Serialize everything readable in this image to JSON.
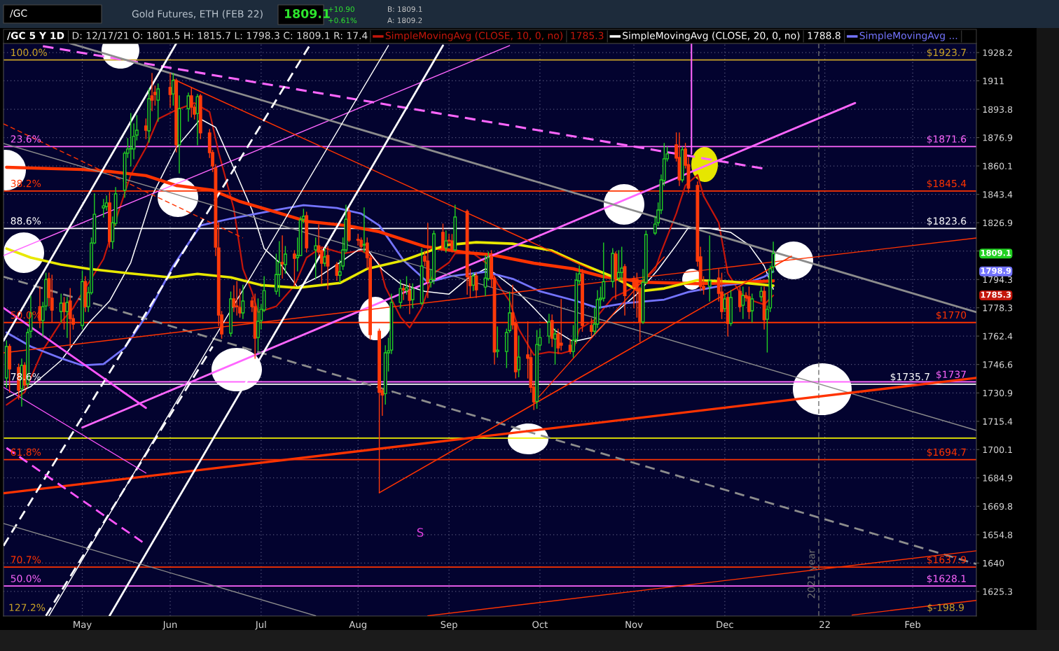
{
  "chart_data": {
    "type": "candlestick",
    "title": "/GC 5 Y 1D",
    "subtitle": "D: 12/17/21 O: 1801.5 H: 1815.7 L: 1798.3 C: 1809.1 R: 17.4",
    "x": [
      "2021-04-08",
      "2021-04-09",
      "2021-04-12",
      "2021-04-13",
      "2021-04-14",
      "2021-04-15",
      "2021-04-16",
      "2021-04-19",
      "2021-04-20",
      "2021-04-21",
      "2021-04-22",
      "2021-04-23",
      "2021-04-26",
      "2021-04-27",
      "2021-04-28",
      "2021-04-29",
      "2021-04-30",
      "2021-05-03",
      "2021-05-04",
      "2021-05-05",
      "2021-05-06",
      "2021-05-07",
      "2021-05-10",
      "2021-05-11",
      "2021-05-12",
      "2021-05-13",
      "2021-05-14",
      "2021-05-17",
      "2021-05-18",
      "2021-05-19",
      "2021-05-20",
      "2021-05-21",
      "2021-05-24",
      "2021-05-25",
      "2021-05-26",
      "2021-05-27",
      "2021-05-28",
      "2021-06-01",
      "2021-06-02",
      "2021-06-03",
      "2021-06-04",
      "2021-06-07",
      "2021-06-08",
      "2021-06-09",
      "2021-06-10",
      "2021-06-11",
      "2021-06-14",
      "2021-06-15",
      "2021-06-16",
      "2021-06-17",
      "2021-06-18",
      "2021-06-21",
      "2021-06-22",
      "2021-06-23",
      "2021-06-24",
      "2021-06-25",
      "2021-06-28",
      "2021-06-29",
      "2021-06-30",
      "2021-07-01",
      "2021-07-02",
      "2021-07-06",
      "2021-07-07",
      "2021-07-08",
      "2021-07-09",
      "2021-07-12",
      "2021-07-13",
      "2021-07-14",
      "2021-07-15",
      "2021-07-16",
      "2021-07-19",
      "2021-07-20",
      "2021-07-21",
      "2021-07-22",
      "2021-07-23",
      "2021-07-26",
      "2021-07-27",
      "2021-07-28",
      "2021-07-29",
      "2021-07-30",
      "2021-08-02",
      "2021-08-03",
      "2021-08-04",
      "2021-08-05",
      "2021-08-06",
      "2021-08-09",
      "2021-08-10",
      "2021-08-11",
      "2021-08-12",
      "2021-08-13",
      "2021-08-16",
      "2021-08-17",
      "2021-08-18",
      "2021-08-19",
      "2021-08-20",
      "2021-08-23",
      "2021-08-24",
      "2021-08-25",
      "2021-08-26",
      "2021-08-27",
      "2021-08-30",
      "2021-08-31",
      "2021-09-01",
      "2021-09-02",
      "2021-09-03",
      "2021-09-07",
      "2021-09-08",
      "2021-09-09",
      "2021-09-10",
      "2021-09-13",
      "2021-09-14",
      "2021-09-15",
      "2021-09-16",
      "2021-09-17",
      "2021-09-20",
      "2021-09-21",
      "2021-09-22",
      "2021-09-23",
      "2021-09-24",
      "2021-09-27",
      "2021-09-28",
      "2021-09-29",
      "2021-09-30",
      "2021-10-01",
      "2021-10-04",
      "2021-10-05",
      "2021-10-06",
      "2021-10-07",
      "2021-10-08",
      "2021-10-11",
      "2021-10-12",
      "2021-10-13",
      "2021-10-14",
      "2021-10-15",
      "2021-10-18",
      "2021-10-19",
      "2021-10-20",
      "2021-10-21",
      "2021-10-22",
      "2021-10-25",
      "2021-10-26",
      "2021-10-27",
      "2021-10-28",
      "2021-10-29",
      "2021-11-01",
      "2021-11-02",
      "2021-11-03",
      "2021-11-04",
      "2021-11-05",
      "2021-11-08",
      "2021-11-09",
      "2021-11-10",
      "2021-11-11",
      "2021-11-12",
      "2021-11-15",
      "2021-11-16",
      "2021-11-17",
      "2021-11-18",
      "2021-11-19",
      "2021-11-22",
      "2021-11-23",
      "2021-11-24",
      "2021-11-26",
      "2021-11-29",
      "2021-11-30",
      "2021-12-01",
      "2021-12-02",
      "2021-12-03",
      "2021-12-06",
      "2021-12-07",
      "2021-12-08",
      "2021-12-09",
      "2021-12-10",
      "2021-12-13",
      "2021-12-14",
      "2021-12-15",
      "2021-12-16",
      "2021-12-17"
    ],
    "ohlc": [
      [
        1739.1,
        1759.7,
        1734.0,
        1756.6
      ],
      [
        1756.6,
        1757.7,
        1731.3,
        1744.1
      ],
      [
        1744.9,
        1746.8,
        1727.5,
        1732.4
      ],
      [
        1733.2,
        1749.6,
        1723.7,
        1746.1
      ],
      [
        1746.1,
        1747.6,
        1733.2,
        1735.2
      ],
      [
        1736.0,
        1766.3,
        1734.4,
        1764.4
      ],
      [
        1765.1,
        1784.8,
        1761.6,
        1775.4
      ],
      [
        1778.9,
        1790.0,
        1767.1,
        1771.1
      ],
      [
        1771.1,
        1781.3,
        1762.4,
        1778.9
      ],
      [
        1779.3,
        1797.9,
        1777.0,
        1794.3
      ],
      [
        1794.7,
        1797.9,
        1779.3,
        1784.1
      ],
      [
        1783.7,
        1796.7,
        1770.3,
        1777.0
      ],
      [
        1776.2,
        1786.0,
        1770.3,
        1780.9
      ],
      [
        1780.9,
        1784.1,
        1766.3,
        1776.2
      ],
      [
        1776.2,
        1784.1,
        1761.6,
        1781.3
      ],
      [
        1782.1,
        1789.2,
        1755.4,
        1772.2
      ],
      [
        1772.2,
        1774.2,
        1766.3,
        1769.1
      ],
      [
        1768.3,
        1799.2,
        1766.3,
        1793.1
      ],
      [
        1793.1,
        1795.9,
        1776.2,
        1778.9
      ],
      [
        1778.9,
        1790.0,
        1776.2,
        1786.8
      ],
      [
        1786.8,
        1818.1,
        1786.0,
        1815.2
      ],
      [
        1815.2,
        1843.7,
        1814.8,
        1831.8
      ],
      [
        1835.5,
        1840.4,
        1830.2,
        1836.7
      ],
      [
        1836.3,
        1842.5,
        1834.3,
        1838.4
      ],
      [
        1838.4,
        1844.5,
        1812.8,
        1816.0
      ],
      [
        1816.0,
        1830.2,
        1812.0,
        1826.9
      ],
      [
        1826.5,
        1847.4,
        1825.3,
        1843.7
      ],
      [
        1845.8,
        1868.4,
        1841.7,
        1867.6
      ],
      [
        1867.6,
        1876.3,
        1865.1,
        1870.1
      ],
      [
        1870.1,
        1891.3,
        1860.1,
        1870.5
      ],
      [
        1870.1,
        1885.1,
        1864.3,
        1877.6
      ],
      [
        1878.4,
        1890.1,
        1875.5,
        1881.3
      ],
      [
        1883.8,
        1888.0,
        1876.3,
        1881.3
      ],
      [
        1880.9,
        1906.1,
        1874.2,
        1900.2
      ],
      [
        1901.9,
        1915.5,
        1893.0,
        1899.3
      ],
      [
        1904.0,
        1907.8,
        1896.3,
        1902.7
      ],
      [
        1899.3,
        1909.1,
        1886.7,
        1906.1
      ],
      [
        1907.0,
        1915.5,
        1895.1,
        1902.7
      ],
      [
        1903.1,
        1915.5,
        1896.3,
        1911.2
      ],
      [
        1911.2,
        1912.1,
        1868.4,
        1872.6
      ],
      [
        1872.6,
        1901.9,
        1856.0,
        1894.2
      ],
      [
        1894.2,
        1903.6,
        1886.7,
        1901.9
      ],
      [
        1901.9,
        1907.0,
        1889.2,
        1895.1
      ],
      [
        1895.1,
        1896.3,
        1888.0,
        1890.9
      ],
      [
        1891.3,
        1902.7,
        1872.6,
        1901.4
      ],
      [
        1901.9,
        1902.7,
        1876.3,
        1879.7
      ],
      [
        1879.7,
        1881.7,
        1865.1,
        1868.0
      ],
      [
        1868.0,
        1869.3,
        1856.8,
        1860.1
      ],
      [
        1858.9,
        1860.9,
        1808.0,
        1812.8
      ],
      [
        1812.4,
        1826.9,
        1768.3,
        1774.2
      ],
      [
        1774.2,
        1776.2,
        1761.2,
        1763.6
      ],
      [
        1764.0,
        1787.2,
        1762.4,
        1783.3
      ],
      [
        1783.3,
        1790.8,
        1776.2,
        1778.9
      ],
      [
        1779.3,
        1793.1,
        1774.2,
        1778.9
      ],
      [
        1778.5,
        1788.8,
        1773.0,
        1775.4
      ],
      [
        1775.4,
        1791.1,
        1772.2,
        1782.1
      ],
      [
        1782.1,
        1784.1,
        1776.2,
        1778.9
      ],
      [
        1778.9,
        1786.0,
        1750.0,
        1761.2
      ],
      [
        1761.6,
        1783.3,
        1754.6,
        1770.7
      ],
      [
        1771.1,
        1780.1,
        1766.3,
        1777.4
      ],
      [
        1777.0,
        1795.9,
        1776.2,
        1788.0
      ],
      [
        1787.6,
        1808.8,
        1786.0,
        1797.1
      ],
      [
        1797.1,
        1816.0,
        1784.8,
        1804.0
      ],
      [
        1804.0,
        1819.3,
        1795.1,
        1803.2
      ],
      [
        1802.8,
        1813.2,
        1797.9,
        1808.8
      ],
      [
        1808.8,
        1810.8,
        1791.1,
        1806.4
      ],
      [
        1806.8,
        1818.1,
        1799.2,
        1808.0
      ],
      [
        1808.0,
        1830.2,
        1808.0,
        1828.5
      ],
      [
        1828.9,
        1834.7,
        1826.9,
        1830.6
      ],
      [
        1831.0,
        1833.0,
        1810.0,
        1812.4
      ],
      [
        1811.2,
        1818.1,
        1795.1,
        1813.6
      ],
      [
        1813.6,
        1825.7,
        1808.0,
        1810.0
      ],
      [
        1810.8,
        1812.0,
        1791.9,
        1803.6
      ],
      [
        1803.6,
        1812.0,
        1802.0,
        1807.2
      ],
      [
        1808.0,
        1813.2,
        1788.8,
        1802.0
      ],
      [
        1802.8,
        1804.0,
        1793.9,
        1796.7
      ],
      [
        1796.7,
        1805.2,
        1792.7,
        1798.7
      ],
      [
        1802.0,
        1818.1,
        1800.0,
        1811.2
      ],
      [
        1811.2,
        1837.1,
        1810.0,
        1828.9
      ],
      [
        1833.0,
        1835.1,
        1816.0,
        1816.8
      ],
      [
        1817.3,
        1820.1,
        1814.0,
        1816.8
      ],
      [
        1816.8,
        1818.1,
        1812.0,
        1813.2
      ],
      [
        1814.0,
        1835.5,
        1810.0,
        1814.4
      ],
      [
        1815.2,
        1818.1,
        1800.8,
        1806.8
      ],
      [
        1806.4,
        1808.0,
        1760.5,
        1763.2
      ],
      [
        1765.1,
        1766.3,
        1677.0,
        1731.3
      ],
      [
        1732.2,
        1733.2,
        1718.7,
        1729.8
      ],
      [
        1730.5,
        1757.0,
        1724.8,
        1753.1
      ],
      [
        1753.1,
        1761.2,
        1743.0,
        1754.2
      ],
      [
        1754.6,
        1786.0,
        1752.7,
        1781.3
      ],
      [
        1781.3,
        1793.9,
        1778.2,
        1789.2
      ],
      [
        1789.2,
        1791.1,
        1782.9,
        1788.4
      ],
      [
        1788.0,
        1795.9,
        1786.0,
        1789.6
      ],
      [
        1788.0,
        1791.9,
        1775.0,
        1782.5
      ],
      [
        1782.9,
        1791.9,
        1778.2,
        1789.2
      ],
      [
        1780.9,
        1812.0,
        1780.1,
        1802.0
      ],
      [
        1807.6,
        1810.0,
        1802.0,
        1804.8
      ],
      [
        1804.8,
        1826.5,
        1784.1,
        1793.1
      ],
      [
        1792.7,
        1800.0,
        1790.0,
        1794.3
      ],
      [
        1794.3,
        1822.1,
        1791.9,
        1820.5
      ],
      [
        1821.3,
        1826.1,
        1811.6,
        1812.4
      ],
      [
        1812.4,
        1822.1,
        1810.0,
        1816.4
      ],
      [
        1816.8,
        1820.1,
        1814.0,
        1816.4
      ],
      [
        1816.4,
        1820.1,
        1810.0,
        1812.0
      ],
      [
        1811.2,
        1837.1,
        1810.8,
        1830.2
      ],
      [
        1833.5,
        1834.3,
        1786.0,
        1795.9
      ],
      [
        1795.9,
        1800.0,
        1784.1,
        1790.8
      ],
      [
        1791.1,
        1797.9,
        1788.0,
        1796.3
      ],
      [
        1796.3,
        1797.9,
        1784.1,
        1788.4
      ],
      [
        1790.0,
        1808.0,
        1785.2,
        1795.1
      ],
      [
        1794.7,
        1810.0,
        1793.9,
        1806.8
      ],
      [
        1807.6,
        1810.8,
        1790.0,
        1794.7
      ],
      [
        1795.1,
        1795.9,
        1746.8,
        1753.5
      ],
      [
        1753.8,
        1767.5,
        1750.7,
        1754.6
      ],
      [
        1753.8,
        1766.3,
        1744.9,
        1764.4
      ],
      [
        1765.5,
        1787.2,
        1764.4,
        1775.4
      ],
      [
        1775.4,
        1791.1,
        1766.3,
        1768.7
      ],
      [
        1769.5,
        1770.3,
        1739.1,
        1742.6
      ],
      [
        1743.7,
        1762.4,
        1739.8,
        1750.7
      ],
      [
        1751.9,
        1770.3,
        1739.1,
        1750.0
      ],
      [
        1750.4,
        1754.6,
        1731.3,
        1734.0
      ],
      [
        1734.0,
        1737.1,
        1721.8,
        1726.0
      ],
      [
        1726.3,
        1765.5,
        1722.5,
        1757.7
      ],
      [
        1757.3,
        1766.3,
        1754.6,
        1761.6
      ],
      [
        1762.4,
        1774.6,
        1758.5,
        1770.3
      ],
      [
        1771.1,
        1774.2,
        1756.6,
        1761.2
      ],
      [
        1760.8,
        1766.3,
        1746.8,
        1763.6
      ],
      [
        1763.6,
        1766.3,
        1752.7,
        1755.8
      ],
      [
        1758.5,
        1782.9,
        1754.6,
        1757.3
      ],
      [
        1757.3,
        1760.5,
        1752.7,
        1753.8
      ],
      [
        1753.8,
        1768.3,
        1750.7,
        1760.1
      ],
      [
        1760.5,
        1797.9,
        1758.5,
        1793.9
      ],
      [
        1793.5,
        1802.0,
        1791.9,
        1797.5
      ],
      [
        1797.5,
        1800.0,
        1765.1,
        1768.3
      ],
      [
        1768.3,
        1772.2,
        1762.4,
        1765.1
      ],
      [
        1765.1,
        1778.2,
        1763.6,
        1769.1
      ],
      [
        1769.1,
        1788.0,
        1767.1,
        1782.9
      ],
      [
        1782.9,
        1790.0,
        1778.2,
        1783.7
      ],
      [
        1783.7,
        1815.2,
        1782.1,
        1793.1
      ],
      [
        1793.1,
        1812.0,
        1790.0,
        1809.2
      ],
      [
        1808.8,
        1810.0,
        1783.3,
        1794.7
      ],
      [
        1795.1,
        1810.8,
        1793.9,
        1798.3
      ],
      [
        1798.3,
        1812.8,
        1793.9,
        1800.8
      ],
      [
        1801.6,
        1802.8,
        1774.2,
        1785.2
      ],
      [
        1794.7,
        1795.9,
        1778.2,
        1790.0
      ],
      [
        1794.3,
        1797.9,
        1773.0,
        1788.0
      ],
      [
        1789.2,
        1790.0,
        1759.3,
        1770.3
      ],
      [
        1770.3,
        1800.0,
        1769.5,
        1792.7
      ],
      [
        1792.7,
        1822.1,
        1791.9,
        1820.1
      ],
      [
        1820.9,
        1830.2,
        1820.1,
        1826.1
      ],
      [
        1826.9,
        1838.4,
        1825.3,
        1834.3
      ],
      [
        1834.3,
        1854.8,
        1832.2,
        1851.9
      ],
      [
        1851.5,
        1873.4,
        1848.6,
        1864.3
      ],
      [
        1864.3,
        1871.3,
        1863.0,
        1867.2
      ],
      [
        1872.6,
        1879.7,
        1863.0,
        1864.7
      ],
      [
        1865.1,
        1879.7,
        1848.6,
        1851.9
      ],
      [
        1851.9,
        1871.3,
        1850.7,
        1869.7
      ],
      [
        1870.1,
        1873.4,
        1858.9,
        1860.5
      ],
      [
        1860.9,
        1865.1,
        1844.5,
        1847.0
      ],
      [
        1848.6,
        1850.7,
        1802.0,
        1804.8
      ],
      [
        1807.2,
        1812.8,
        1788.0,
        1790.4
      ],
      [
        1790.4,
        1795.9,
        1786.0,
        1788.8
      ],
      [
        1790.4,
        1819.3,
        1782.1,
        1793.5
      ],
      [
        1795.1,
        1800.0,
        1782.1,
        1786.4
      ],
      [
        1787.2,
        1797.9,
        1772.2,
        1776.2
      ],
      [
        1777.8,
        1786.0,
        1776.2,
        1783.3
      ],
      [
        1784.1,
        1786.0,
        1762.4,
        1769.5
      ],
      [
        1769.5,
        1788.0,
        1768.3,
        1784.1
      ],
      [
        1787.6,
        1790.0,
        1776.2,
        1778.9
      ],
      [
        1779.7,
        1790.0,
        1772.2,
        1785.2
      ],
      [
        1785.2,
        1786.8,
        1782.1,
        1784.1
      ],
      [
        1784.5,
        1790.0,
        1772.2,
        1776.2
      ],
      [
        1776.6,
        1786.0,
        1770.3,
        1783.3
      ],
      [
        1784.5,
        1790.0,
        1782.1,
        1787.6
      ],
      [
        1787.6,
        1790.0,
        1766.3,
        1771.5
      ],
      [
        1771.8,
        1779.3,
        1753.5,
        1777.4
      ],
      [
        1778.2,
        1801.9,
        1776.2,
        1800.4
      ],
      [
        1801.5,
        1815.7,
        1798.3,
        1809.1
      ]
    ],
    "series": [
      {
        "type": "line",
        "name": "SimpleMovingAvg (CLOSE, 10, 0, no)",
        "color": "#c4160b",
        "x": [
          "2021-04-08",
          "2021-04-14",
          "2021-04-20",
          "2021-04-26",
          "2021-04-30",
          "2021-05-01",
          "2021-05-10",
          "2021-05-15",
          "2021-05-19",
          "2021-05-24",
          "2021-05-28",
          "2021-06-03",
          "2021-06-09",
          "2021-06-14",
          "2021-06-17",
          "2021-06-22",
          "2021-06-25",
          "2021-06-28",
          "2021-06-30",
          "2021-07-06",
          "2021-07-12",
          "2021-07-16",
          "2021-07-21",
          "2021-07-28",
          "2021-08-03",
          "2021-08-06",
          "2021-08-09",
          "2021-08-11",
          "2021-08-16",
          "2021-08-19",
          "2021-08-23",
          "2021-08-27",
          "2021-09-01",
          "2021-09-03",
          "2021-09-09",
          "2021-09-14",
          "2021-09-17",
          "2021-09-21",
          "2021-09-24",
          "2021-09-29",
          "2021-10-04",
          "2021-10-08",
          "2021-10-12",
          "2021-10-14",
          "2021-10-19",
          "2021-10-25",
          "2021-10-29",
          "2021-11-03",
          "2021-11-08",
          "2021-11-10",
          "2021-11-15",
          "2021-11-18",
          "2021-11-22",
          "2021-11-24",
          "2021-11-29",
          "2021-12-02",
          "2021-12-06",
          "2021-12-09",
          "2021-12-14",
          "2021-12-17"
        ],
        "values": [
          1724.4,
          1731.3,
          1754.6,
          1770.3,
          1778.2,
          1781.2,
          1806.0,
          1833.5,
          1854.8,
          1870.9,
          1888.0,
          1893.4,
          1897.6,
          1892.2,
          1868.0,
          1835.1,
          1800.4,
          1787.2,
          1775.8,
          1779.1,
          1790.8,
          1806.8,
          1812.8,
          1809.2,
          1810.8,
          1808.0,
          1803.2,
          1790.0,
          1773.0,
          1767.1,
          1778.2,
          1797.9,
          1804.0,
          1809.2,
          1809.2,
          1802.8,
          1791.9,
          1782.1,
          1766.3,
          1751.9,
          1753.5,
          1752.7,
          1754.6,
          1766.3,
          1771.5,
          1784.1,
          1787.2,
          1791.9,
          1800.0,
          1810.0,
          1832.3,
          1848.7,
          1854.8,
          1842.5,
          1826.9,
          1797.9,
          1786.8,
          1782.9,
          1780.1,
          1785.3
        ]
      },
      {
        "type": "line",
        "name": "SimpleMovingAvg (CLOSE, 20, 0, no)",
        "color": "#ffffff",
        "x": [
          "2021-04-08",
          "2021-04-16",
          "2021-04-26",
          "2021-05-05",
          "2021-05-12",
          "2021-05-19",
          "2021-05-26",
          "2021-06-03",
          "2021-06-11",
          "2021-06-16",
          "2021-06-22",
          "2021-06-28",
          "2021-07-02",
          "2021-07-07",
          "2021-07-13",
          "2021-07-20",
          "2021-07-27",
          "2021-08-02",
          "2021-08-05",
          "2021-08-10",
          "2021-08-16",
          "2021-08-24",
          "2021-09-01",
          "2021-09-07",
          "2021-09-13",
          "2021-09-16",
          "2021-09-22",
          "2021-09-29",
          "2021-10-06",
          "2021-10-12",
          "2021-10-18",
          "2021-10-25",
          "2021-11-02",
          "2021-11-09",
          "2021-11-15",
          "2021-11-19",
          "2021-11-26",
          "2021-12-03",
          "2021-12-09",
          "2021-12-14",
          "2021-12-17"
        ],
        "values": [
          1728.2,
          1734.4,
          1748.8,
          1769.5,
          1782.1,
          1804.0,
          1842.5,
          1870.9,
          1888.0,
          1883.0,
          1858.9,
          1834.3,
          1812.0,
          1804.0,
          1790.0,
          1795.9,
          1804.0,
          1811.2,
          1811.6,
          1800.0,
          1791.9,
          1787.6,
          1786.0,
          1794.7,
          1800.4,
          1797.9,
          1790.0,
          1778.2,
          1765.5,
          1759.3,
          1761.6,
          1774.2,
          1786.0,
          1800.0,
          1814.0,
          1824.1,
          1823.7,
          1821.3,
          1814.0,
          1802.0,
          1788.8
        ]
      },
      {
        "type": "line",
        "name": "SimpleMovingAvg ...",
        "color": "#7474ff",
        "x": [
          "2021-04-08",
          "2021-04-16",
          "2021-04-26",
          "2021-05-03",
          "2021-05-10",
          "2021-05-17",
          "2021-05-25",
          "2021-06-02",
          "2021-06-11",
          "2021-06-21",
          "2021-07-06",
          "2021-07-15",
          "2021-07-26",
          "2021-08-03",
          "2021-08-09",
          "2021-08-17",
          "2021-08-25",
          "2021-09-02",
          "2021-09-13",
          "2021-09-22",
          "2021-10-01",
          "2021-10-13",
          "2021-10-20",
          "2021-10-29",
          "2021-11-11",
          "2021-11-19",
          "2021-11-30",
          "2021-12-09",
          "2021-12-14",
          "2021-12-17"
        ],
        "values": [
          1764.4,
          1756.6,
          1750.0,
          1746.1,
          1746.8,
          1755.8,
          1776.2,
          1802.0,
          1825.3,
          1829.3,
          1834.3,
          1837.1,
          1835.5,
          1832.2,
          1825.3,
          1805.2,
          1792.7,
          1796.3,
          1798.7,
          1794.7,
          1787.6,
          1782.1,
          1778.2,
          1780.9,
          1782.9,
          1787.2,
          1790.8,
          1792.7,
          1795.9,
          1798.9
        ]
      },
      {
        "type": "line",
        "color": "#ff3300",
        "x": [
          "2021-04-08",
          "2021-05-03",
          "2021-05-12",
          "2021-05-24",
          "2021-06-03",
          "2021-06-15",
          "2021-06-24",
          "2021-07-06",
          "2021-07-16",
          "2021-07-29",
          "2021-08-09",
          "2021-08-24",
          "2021-09-07",
          "2021-09-15",
          "2021-09-29",
          "2021-10-12",
          "2021-10-22",
          "2021-11-05",
          "2021-11-22",
          "2021-12-07",
          "2021-12-17"
        ],
        "values": [
          1859.3,
          1858.0,
          1856.8,
          1854.4,
          1848.6,
          1845.8,
          1839.2,
          1833.0,
          1827.7,
          1825.3,
          1821.7,
          1813.2,
          1809.6,
          1808.4,
          1803.6,
          1800.4,
          1795.9,
          1792.7,
          1791.9,
          1792.7,
          1793.5
        ]
      },
      {
        "type": "line",
        "color": "#e8e800",
        "x": [
          "2021-04-08",
          "2021-04-16",
          "2021-04-26",
          "2021-05-05",
          "2021-05-18",
          "2021-06-01",
          "2021-06-10",
          "2021-06-21",
          "2021-07-01",
          "2021-07-13",
          "2021-07-27",
          "2021-08-05",
          "2021-08-17",
          "2021-08-31",
          "2021-09-10",
          "2021-09-22",
          "2021-10-05",
          "2021-10-14",
          "2021-10-25",
          "2021-11-03",
          "2021-11-11",
          "2021-11-22",
          "2021-12-03",
          "2021-12-17"
        ],
        "values": [
          1812.0,
          1806.8,
          1802.8,
          1800.4,
          1797.9,
          1795.5,
          1797.5,
          1795.5,
          1791.1,
          1789.6,
          1792.3,
          1800.4,
          1805.2,
          1814.0,
          1815.6,
          1814.8,
          1810.8,
          1803.6,
          1795.9,
          1787.6,
          1789.2,
          1793.9,
          1793.1,
          1790.8
        ]
      },
      {
        "type": "line",
        "color": "#ff66ff",
        "line_style": "dashed",
        "x": [
          "2021-04-20",
          "2021-12-14"
        ],
        "values": [
          1932.1,
          1858.5
        ]
      },
      {
        "type": "line",
        "color": "#ff66ff",
        "x": [
          "2021-05-03",
          "2022-01-13"
        ],
        "values": [
          1712.0,
          1897.6
        ]
      },
      {
        "type": "line",
        "color": "#ff66ff",
        "x": [
          "2021-04-07",
          "2021-09-21"
        ],
        "values": [
          1808.0,
          1932.5
        ]
      },
      {
        "type": "line",
        "color": "#8c8c8c",
        "x": [
          "2021-04-29",
          "2022-02-22"
        ],
        "values": [
          1933.8,
          1775.8
        ]
      },
      {
        "type": "line",
        "color": "#8c8c8c",
        "x": [
          "2021-04-07",
          "2022-02-22"
        ],
        "values": [
          1873.4,
          1710.5
        ]
      },
      {
        "type": "line",
        "color": "#8c8c8c",
        "line_style": "dashed",
        "x": [
          "2021-04-07",
          "2022-02-22"
        ],
        "values": [
          1795.9,
          1639.5
        ]
      },
      {
        "type": "line",
        "color": "#ff3300",
        "x": [
          "2021-04-07",
          "2022-02-22"
        ],
        "values": [
          1676.7,
          1739.2
        ]
      },
      {
        "type": "line",
        "color": "#ff3300",
        "x": [
          "2021-04-07",
          "2022-02-22"
        ],
        "values": [
          1753.1,
          1818.1
        ]
      },
      {
        "type": "line",
        "color": "#ff3300",
        "x": [
          "2021-08-25",
          "2022-02-22"
        ],
        "values": [
          1612.8,
          1646.4
        ]
      },
      {
        "type": "line",
        "color": "#ff3300",
        "x": [
          "2022-01-12",
          "2022-02-22"
        ],
        "values": [
          1613.2,
          1620.7
        ]
      },
      {
        "type": "line",
        "color": "#ff3300",
        "x": [
          "2021-08-09",
          "2021-12-23"
        ],
        "values": [
          1677.0,
          1807.6
        ]
      },
      {
        "type": "line",
        "color": "#ff3300",
        "x": [
          "2021-09-29",
          "2021-11-11"
        ],
        "values": [
          1725.7,
          1807.2
        ]
      },
      {
        "type": "line",
        "color": "#ff3300",
        "x": [
          "2021-06-02",
          "2021-10-18"
        ],
        "values": [
          1912.0,
          1800.0
        ]
      },
      {
        "type": "line",
        "color": "#ff3300",
        "line_style": "dashed",
        "x": [
          "2021-04-07",
          "2021-06-25"
        ],
        "values": [
          1885.1,
          1818.1
        ]
      },
      {
        "type": "line",
        "color": "#ffffff",
        "x": [
          "2021-04-07",
          "2021-06-03"
        ],
        "values": [
          1759.8,
          1933.8
        ]
      },
      {
        "type": "line",
        "color": "#ffffff",
        "x": [
          "2021-05-12",
          "2021-08-30"
        ],
        "values": [
          1612.8,
          1932.5
        ]
      },
      {
        "type": "line",
        "color": "#ffffff",
        "x": [
          "2021-04-22",
          "2021-08-12"
        ],
        "values": [
          1612.8,
          1932.5
        ]
      },
      {
        "type": "line",
        "color": "#ffffff",
        "line_style": "dashed",
        "x": [
          "2021-04-07",
          "2021-07-17"
        ],
        "values": [
          1649.0,
          1932.5
        ]
      },
      {
        "type": "line",
        "color": "#ffffff",
        "line_style": "dashed",
        "x": [
          "2021-04-21",
          "2021-06-15"
        ],
        "values": [
          1612.8,
          1756.6
        ]
      },
      {
        "type": "line",
        "color": "#ff55ff",
        "x": [
          "2021-04-07",
          "2021-05-24"
        ],
        "values": [
          1778.2,
          1722.7
        ]
      },
      {
        "type": "line",
        "color": "#ff55ff",
        "x": [
          "2021-04-07",
          "2021-05-24"
        ],
        "values": [
          1734.0,
          1687.5
        ]
      },
      {
        "type": "line",
        "color": "#ff55ff",
        "line_style": "dashed",
        "x": [
          "2021-04-08",
          "2021-05-24"
        ],
        "values": [
          1701.0,
          1649.7
        ]
      },
      {
        "type": "line",
        "color": "#8c8c8c",
        "x": [
          "2021-04-07",
          "2021-07-19"
        ],
        "values": [
          1660.7,
          1612.8
        ]
      },
      {
        "type": "line",
        "color": "#ff66ff",
        "x": [
          "2021-11-20",
          "2021-11-20"
        ],
        "values": [
          1933.8,
          1867.2
        ]
      }
    ],
    "xlim": [
      "2021-04-07",
      "2022-02-22"
    ],
    "xticks": [
      {
        "value": "2021-05-03",
        "label": "May"
      },
      {
        "value": "2021-06-01",
        "label": "Jun"
      },
      {
        "value": "2021-07-01",
        "label": "Jul"
      },
      {
        "value": "2021-08-02",
        "label": "Aug"
      },
      {
        "value": "2021-09-01",
        "label": "Sep"
      },
      {
        "value": "2021-10-01",
        "label": "Oct"
      },
      {
        "value": "2021-11-01",
        "label": "Nov"
      },
      {
        "value": "2021-12-01",
        "label": "Dec"
      },
      {
        "value": "2022-01-03",
        "label": "22"
      },
      {
        "value": "2022-02-01",
        "label": "Feb"
      }
    ],
    "ylim": [
      1612.7,
      1933.8
    ],
    "yticks": [
      1625.3,
      1640,
      1654.8,
      1669.8,
      1684.9,
      1700.1,
      1715.4,
      1730.9,
      1746.6,
      1762.4,
      1778.3,
      1794.3,
      {
        "value": 1810.6,
        "label": null
      },
      1826.9,
      1843.4,
      1860.1,
      1876.9,
      1893.8,
      1911,
      1928.2
    ],
    "log": true,
    "grid": true,
    "legend": "top right",
    "ref_lines": [
      {
        "axis": "y",
        "value": 1923.7,
        "label": "$1923.7",
        "color": "#c9a227"
      },
      {
        "axis": "y",
        "value": 1871.6,
        "label": "$1871.6",
        "color": "#ff66ff"
      },
      {
        "axis": "y",
        "value": 1845.4,
        "label": "$1845.4",
        "color": "#ff3300"
      },
      {
        "axis": "y",
        "value": 1823.6,
        "label": "$1823.6",
        "color": "#ffffff"
      },
      {
        "axis": "y",
        "value": 1770,
        "label": "$1770",
        "color": "#ff3300"
      },
      {
        "axis": "y",
        "value": 1737,
        "label": "$1737",
        "color": "#ff66ff"
      },
      {
        "axis": "y",
        "value": 1735.7,
        "label": "$1735.7",
        "color": "#ffffff"
      },
      {
        "axis": "y",
        "value": 1706.3,
        "color": "#f0f000"
      },
      {
        "axis": "y",
        "value": 1694.7,
        "label": "$1694.7",
        "color": "#ff3300"
      },
      {
        "axis": "y",
        "value": 1637.9,
        "label": "$1637.9",
        "color": "#ff3300"
      },
      {
        "axis": "y",
        "value": 1628.1,
        "label": "$1628.1",
        "color": "#ff66ff"
      },
      {
        "axis": "x",
        "value": "2022-01-01",
        "label": "2021 year",
        "color": "#707070",
        "line_style": "dashed"
      }
    ],
    "annotations": [
      "/GC",
      "Gold Futures, ETH (FEB 22)",
      "1809.1",
      "+10.90",
      "+0.61%",
      "B: 1809.1",
      "A: 1809.2",
      "127.2%",
      "$-198.9",
      "S",
      "1809.1",
      "1798.9",
      "1785.3",
      "1785.3",
      "1788.8",
      {
        "text": "100.0%",
        "x": "2021-04-07",
        "y": 1923.7
      },
      {
        "text": "23.6%",
        "x": "2021-04-07",
        "y": 1871.6
      },
      {
        "text": "38.2%",
        "x": "2021-04-07",
        "y": 1845.4
      },
      {
        "text": "88.6%",
        "x": "2021-04-07",
        "y": 1823.6
      },
      {
        "text": "50.0%",
        "x": "2021-04-07",
        "y": 1770
      },
      {
        "text": "78.6%",
        "x": "2021-04-07",
        "y": 1735.7
      },
      {
        "text": "61.8%",
        "x": "2021-04-07",
        "y": 1694.7
      },
      {
        "text": "70.7%",
        "x": "2021-04-07",
        "y": 1637.9
      },
      {
        "text": "50.0%",
        "x": "2021-04-07",
        "y": 1628.1
      }
    ]
  }
}
